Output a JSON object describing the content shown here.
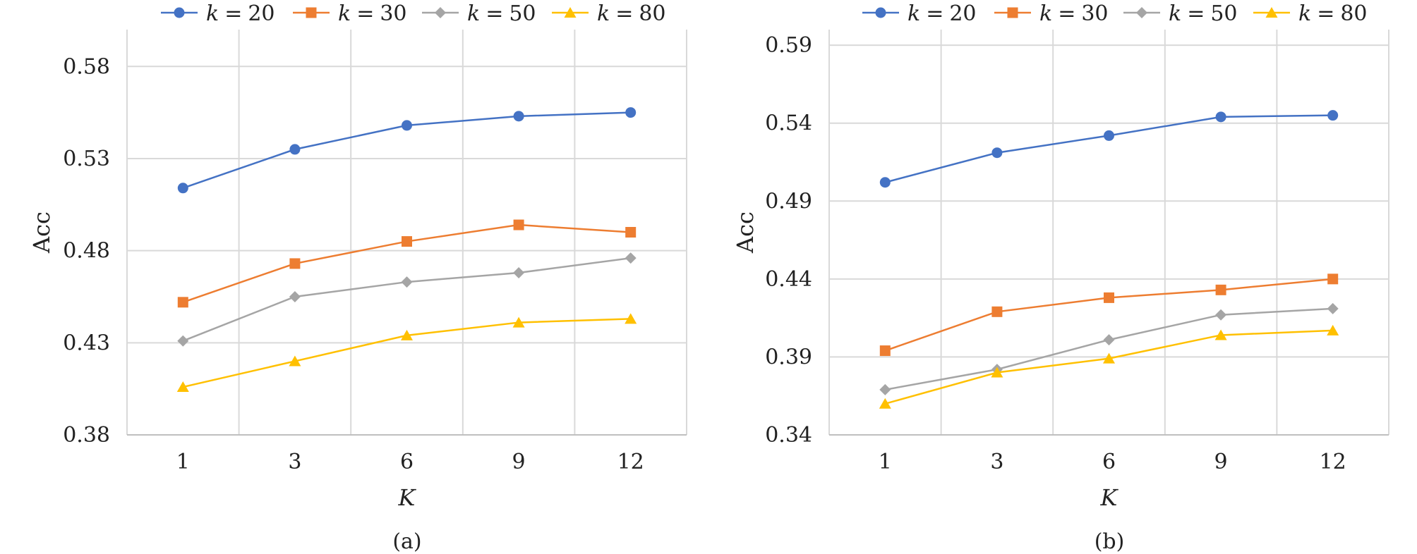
{
  "chart_data": [
    {
      "type": "line",
      "caption": "(a)",
      "xlabel": "K",
      "ylabel": "Acc",
      "categories": [
        "1",
        "3",
        "6",
        "9",
        "12"
      ],
      "ylim": [
        0.38,
        0.6
      ],
      "yticks": [
        "0.38",
        "0.43",
        "0.48",
        "0.53",
        "0.58"
      ],
      "grid": true,
      "legend_position": "top",
      "series": [
        {
          "name": "k = 20",
          "marker": "circle",
          "color": "#4472c4",
          "values": [
            0.514,
            0.535,
            0.548,
            0.553,
            0.555
          ]
        },
        {
          "name": "k = 30",
          "marker": "square",
          "color": "#ed7d31",
          "values": [
            0.452,
            0.473,
            0.485,
            0.494,
            0.49
          ]
        },
        {
          "name": "k = 50",
          "marker": "diamond",
          "color": "#a5a5a5",
          "values": [
            0.431,
            0.455,
            0.463,
            0.468,
            0.476
          ]
        },
        {
          "name": "k = 80",
          "marker": "triangle",
          "color": "#ffc000",
          "values": [
            0.406,
            0.42,
            0.434,
            0.441,
            0.443
          ]
        }
      ]
    },
    {
      "type": "line",
      "caption": "(b)",
      "xlabel": "K",
      "ylabel": "Acc",
      "categories": [
        "1",
        "3",
        "6",
        "9",
        "12"
      ],
      "ylim": [
        0.34,
        0.6
      ],
      "yticks": [
        "0.34",
        "0.39",
        "0.44",
        "0.49",
        "0.54",
        "0.59"
      ],
      "grid": true,
      "legend_position": "top",
      "series": [
        {
          "name": "k = 20",
          "marker": "circle",
          "color": "#4472c4",
          "values": [
            0.502,
            0.521,
            0.532,
            0.544,
            0.545
          ]
        },
        {
          "name": "k = 30",
          "marker": "square",
          "color": "#ed7d31",
          "values": [
            0.394,
            0.419,
            0.428,
            0.433,
            0.44
          ]
        },
        {
          "name": "k = 50",
          "marker": "diamond",
          "color": "#a5a5a5",
          "values": [
            0.369,
            0.382,
            0.401,
            0.417,
            0.421
          ]
        },
        {
          "name": "k = 80",
          "marker": "triangle",
          "color": "#ffc000",
          "values": [
            0.36,
            0.38,
            0.389,
            0.404,
            0.407
          ]
        }
      ]
    }
  ]
}
